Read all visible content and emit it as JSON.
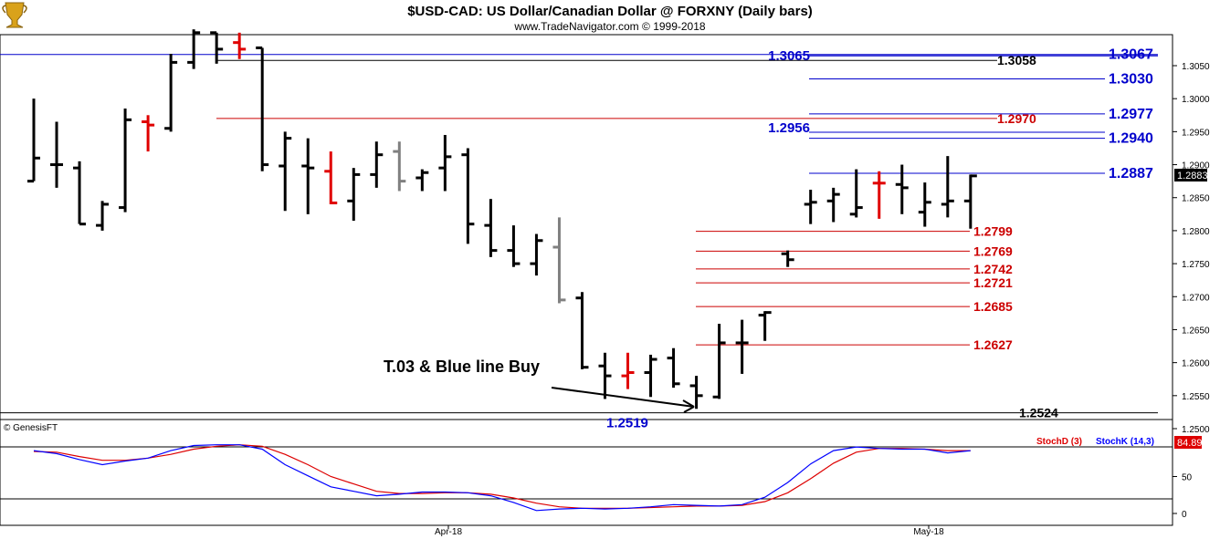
{
  "header": {
    "title": "$USD-CAD:  US Dollar/Canadian Dollar @ FORXNY  (Daily bars)",
    "subtitle": "www.TradeNavigator.com © 1999-2018"
  },
  "logo_icon": "gold-trophy-icon",
  "colors": {
    "up_bar": "#000000",
    "down_bar": "#e00000",
    "neutral_bar": "#808080",
    "blue_line": "#0000cc",
    "red_line": "#cc0000",
    "black_line": "#000000",
    "stoch_k": "#0000ff",
    "stoch_d": "#dd0000"
  },
  "price_axis": {
    "ticks": [
      "1.3050",
      "1.3000",
      "1.2950",
      "1.2900",
      "1.2850",
      "1.2800",
      "1.2750",
      "1.2700",
      "1.2650",
      "1.2600",
      "1.2550",
      "1.2500"
    ],
    "last_price": "1.2883"
  },
  "annotations": {
    "text": "T.03 & Blue line Buy"
  },
  "levels": [
    {
      "value": 1.3067,
      "label": "1.3067",
      "color": "blue",
      "span": "full"
    },
    {
      "value": 1.3065,
      "label": "1.3065",
      "color": "blue",
      "span": "left"
    },
    {
      "value": 1.3058,
      "label": "1.3058",
      "color": "black",
      "span": "left"
    },
    {
      "value": 1.303,
      "label": "1.3030",
      "color": "blue",
      "span": "short"
    },
    {
      "value": 1.2977,
      "label": "1.2977",
      "color": "blue",
      "span": "short"
    },
    {
      "value": 1.297,
      "label": "1.2970",
      "color": "red",
      "span": "left"
    },
    {
      "value": 1.2956,
      "label": "1.2956",
      "color": "blue",
      "span": "short"
    },
    {
      "value": 1.294,
      "label": "1.2940",
      "color": "blue",
      "span": "short"
    },
    {
      "value": 1.2887,
      "label": "1.2887",
      "color": "blue",
      "span": "short"
    },
    {
      "value": 1.2799,
      "label": "1.2799",
      "color": "red",
      "span": "low"
    },
    {
      "value": 1.2769,
      "label": "1.2769",
      "color": "red",
      "span": "low"
    },
    {
      "value": 1.2742,
      "label": "1.2742",
      "color": "red",
      "span": "low"
    },
    {
      "value": 1.2721,
      "label": "1.2721",
      "color": "red",
      "span": "low"
    },
    {
      "value": 1.2685,
      "label": "1.2685",
      "color": "red",
      "span": "low"
    },
    {
      "value": 1.2627,
      "label": "1.2627",
      "color": "red",
      "span": "low"
    },
    {
      "value": 1.2524,
      "label": "1.2524",
      "color": "black",
      "span": "full"
    },
    {
      "value": 1.2519,
      "label": "1.2519",
      "color": "blue",
      "span": "none"
    }
  ],
  "chart_data": {
    "type": "ohlc",
    "title": "$USD-CAD:  US Dollar/Canadian Dollar @ FORXNY  (Daily bars)",
    "x_tick_labels": [
      "Apr-18",
      "May-18"
    ],
    "ylim": [
      1.249,
      1.31
    ],
    "bars": [
      {
        "o": 1.2875,
        "h": 1.3,
        "l": 1.2875,
        "c": 1.291,
        "k": "up"
      },
      {
        "o": 1.29,
        "h": 1.2965,
        "l": 1.2865,
        "c": 1.29,
        "k": "up"
      },
      {
        "o": 1.2895,
        "h": 1.2905,
        "l": 1.281,
        "c": 1.281,
        "k": "up"
      },
      {
        "o": 1.2808,
        "h": 1.2845,
        "l": 1.28,
        "c": 1.284,
        "k": "up"
      },
      {
        "o": 1.2835,
        "h": 1.2985,
        "l": 1.2828,
        "c": 1.2968,
        "k": "up"
      },
      {
        "o": 1.2965,
        "h": 1.2975,
        "l": 1.292,
        "c": 1.296,
        "k": "down"
      },
      {
        "o": 1.2955,
        "h": 1.3068,
        "l": 1.295,
        "c": 1.3055,
        "k": "up"
      },
      {
        "o": 1.3055,
        "h": 1.3105,
        "l": 1.3045,
        "c": 1.31,
        "k": "up"
      },
      {
        "o": 1.31,
        "h": 1.31,
        "l": 1.3053,
        "c": 1.3075,
        "k": "up"
      },
      {
        "o": 1.3085,
        "h": 1.31,
        "l": 1.306,
        "c": 1.3075,
        "k": "down"
      },
      {
        "o": 1.3077,
        "h": 1.3077,
        "l": 1.289,
        "c": 1.29,
        "k": "up"
      },
      {
        "o": 1.2898,
        "h": 1.295,
        "l": 1.283,
        "c": 1.294,
        "k": "up"
      },
      {
        "o": 1.2898,
        "h": 1.294,
        "l": 1.2825,
        "c": 1.2895,
        "k": "up"
      },
      {
        "o": 1.289,
        "h": 1.292,
        "l": 1.284,
        "c": 1.2842,
        "k": "down"
      },
      {
        "o": 1.2845,
        "h": 1.2895,
        "l": 1.2815,
        "c": 1.2885,
        "k": "up"
      },
      {
        "o": 1.2885,
        "h": 1.2935,
        "l": 1.2865,
        "c": 1.2915,
        "k": "up"
      },
      {
        "o": 1.292,
        "h": 1.2935,
        "l": 1.286,
        "c": 1.2875,
        "k": "neutral"
      },
      {
        "o": 1.288,
        "h": 1.2893,
        "l": 1.286,
        "c": 1.2888,
        "k": "up"
      },
      {
        "o": 1.2895,
        "h": 1.2945,
        "l": 1.286,
        "c": 1.2912,
        "k": "up"
      },
      {
        "o": 1.2915,
        "h": 1.2925,
        "l": 1.278,
        "c": 1.281,
        "k": "up"
      },
      {
        "o": 1.2808,
        "h": 1.2848,
        "l": 1.276,
        "c": 1.277,
        "k": "up"
      },
      {
        "o": 1.277,
        "h": 1.2808,
        "l": 1.2745,
        "c": 1.275,
        "k": "up"
      },
      {
        "o": 1.275,
        "h": 1.2795,
        "l": 1.2732,
        "c": 1.2785,
        "k": "up"
      },
      {
        "o": 1.2775,
        "h": 1.282,
        "l": 1.269,
        "c": 1.2695,
        "k": "neutral"
      },
      {
        "o": 1.2698,
        "h": 1.2707,
        "l": 1.259,
        "c": 1.2593,
        "k": "up"
      },
      {
        "o": 1.2595,
        "h": 1.2615,
        "l": 1.2545,
        "c": 1.258,
        "k": "up"
      },
      {
        "o": 1.258,
        "h": 1.2615,
        "l": 1.256,
        "c": 1.2585,
        "k": "down"
      },
      {
        "o": 1.2585,
        "h": 1.2612,
        "l": 1.2548,
        "c": 1.2605,
        "k": "up"
      },
      {
        "o": 1.2607,
        "h": 1.2622,
        "l": 1.2562,
        "c": 1.2568,
        "k": "up"
      },
      {
        "o": 1.2565,
        "h": 1.258,
        "l": 1.253,
        "c": 1.255,
        "k": "up"
      },
      {
        "o": 1.2548,
        "h": 1.2659,
        "l": 1.2545,
        "c": 1.263,
        "k": "up"
      },
      {
        "o": 1.263,
        "h": 1.2665,
        "l": 1.2583,
        "c": 1.263,
        "k": "up"
      },
      {
        "o": 1.2672,
        "h": 1.2678,
        "l": 1.2633,
        "c": 1.2676,
        "k": "up"
      },
      {
        "o": 1.2765,
        "h": 1.277,
        "l": 1.2745,
        "c": 1.2756,
        "k": "up"
      },
      {
        "o": 1.284,
        "h": 1.2862,
        "l": 1.281,
        "c": 1.2843,
        "k": "up"
      },
      {
        "o": 1.2845,
        "h": 1.2865,
        "l": 1.2813,
        "c": 1.2855,
        "k": "up"
      },
      {
        "o": 1.2825,
        "h": 1.2893,
        "l": 1.282,
        "c": 1.2835,
        "k": "up"
      },
      {
        "o": 1.2872,
        "h": 1.289,
        "l": 1.2818,
        "c": 1.2872,
        "k": "down"
      },
      {
        "o": 1.287,
        "h": 1.29,
        "l": 1.2825,
        "c": 1.2865,
        "k": "up"
      },
      {
        "o": 1.2828,
        "h": 1.2873,
        "l": 1.2806,
        "c": 1.2843,
        "k": "up"
      },
      {
        "o": 1.284,
        "h": 1.2913,
        "l": 1.282,
        "c": 1.2845,
        "k": "up"
      },
      {
        "o": 1.2845,
        "h": 1.2885,
        "l": 1.2803,
        "c": 1.2883,
        "k": "up"
      }
    ],
    "stochastic": {
      "label": "© GenesisFT",
      "d_label": "StochD (3)",
      "k_label": "StochK (14,3)",
      "last_value": "84.89",
      "ticks": [
        "50",
        "0"
      ],
      "ylim": [
        -5,
        112
      ],
      "k_values": [
        85,
        81,
        73,
        66,
        71,
        75,
        85,
        92,
        93,
        93,
        87,
        66,
        51,
        36,
        30,
        24,
        26,
        29,
        29,
        28,
        24,
        15,
        4,
        6,
        7,
        6,
        7,
        9,
        12,
        11,
        10,
        12,
        22,
        42,
        67,
        85,
        90,
        88,
        87,
        87,
        82,
        85
      ],
      "d_values": [
        84,
        83,
        77,
        72,
        72,
        75,
        80,
        87,
        91,
        93,
        91,
        80,
        66,
        50,
        40,
        30,
        27,
        27,
        28,
        28,
        26,
        21,
        14,
        9,
        7,
        7,
        7,
        8,
        9,
        10,
        10,
        11,
        16,
        28,
        47,
        68,
        83,
        88,
        88,
        87,
        85,
        85
      ]
    }
  }
}
